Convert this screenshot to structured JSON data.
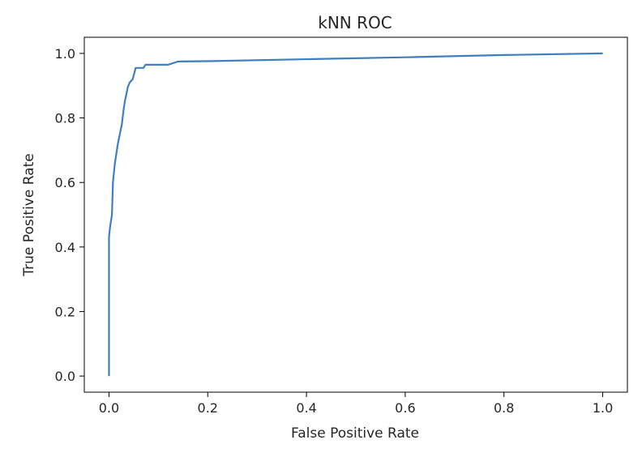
{
  "chart_data": {
    "type": "line",
    "title": "kNN ROC",
    "xlabel": "False Positive Rate",
    "ylabel": "True Positive Rate",
    "xlim": [
      -0.05,
      1.05
    ],
    "ylim": [
      -0.05,
      1.05
    ],
    "grid": false,
    "line_color": "#3f7fbf",
    "x_ticks": [
      0.0,
      0.2,
      0.4,
      0.6,
      0.8,
      1.0
    ],
    "x_tick_labels": [
      "0.0",
      "0.2",
      "0.4",
      "0.6",
      "0.8",
      "1.0"
    ],
    "y_ticks": [
      0.0,
      0.2,
      0.4,
      0.6,
      0.8,
      1.0
    ],
    "y_tick_labels": [
      "0.0",
      "0.2",
      "0.4",
      "0.6",
      "0.8",
      "1.0"
    ],
    "series": [
      {
        "x": [
          0.0,
          0.0,
          0.002,
          0.006,
          0.008,
          0.012,
          0.018,
          0.022,
          0.026,
          0.03,
          0.032,
          0.038,
          0.042,
          0.048,
          0.054,
          0.056,
          0.064,
          0.07,
          0.074,
          0.08,
          0.11,
          0.12,
          0.14,
          0.2,
          0.4,
          0.6,
          0.8,
          1.0
        ],
        "y": [
          0.0,
          0.43,
          0.46,
          0.5,
          0.6,
          0.66,
          0.72,
          0.75,
          0.78,
          0.83,
          0.85,
          0.895,
          0.91,
          0.92,
          0.955,
          0.955,
          0.955,
          0.955,
          0.965,
          0.965,
          0.965,
          0.965,
          0.975,
          0.976,
          0.982,
          0.988,
          0.995,
          1.0
        ]
      }
    ]
  }
}
